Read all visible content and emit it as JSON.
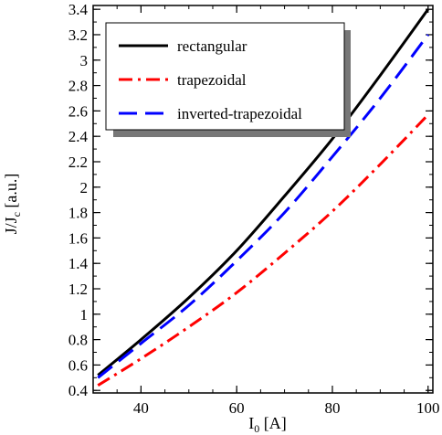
{
  "chart_data": {
    "type": "line",
    "xlabel": "I",
    "xlabel_sub": "0",
    "xlabel_unit": " [A]",
    "ylabel": "J/J",
    "ylabel_sub": "c",
    "ylabel_unit": " [a.u.]",
    "xlim": [
      30,
      101
    ],
    "ylim": [
      0.38,
      3.43
    ],
    "xticks": [
      40,
      60,
      80,
      100
    ],
    "yticks": [
      0.4,
      0.6,
      0.8,
      1,
      1.2,
      1.4,
      1.6,
      1.8,
      2,
      2.2,
      2.4,
      2.6,
      2.8,
      3,
      3.2,
      3.4
    ],
    "x_minor_step": 5,
    "y_minor_step": 0.1,
    "grid": false,
    "legend_position": "top-left",
    "series": [
      {
        "name": "rectangular",
        "color": "#000000",
        "dash": "solid",
        "x": [
          31,
          40,
          50,
          60,
          70,
          80,
          90,
          100
        ],
        "y": [
          0.52,
          0.8,
          1.13,
          1.5,
          1.93,
          2.38,
          2.88,
          3.4
        ]
      },
      {
        "name": "trapezoidal",
        "color": "#ff0000",
        "dash": "dashdot",
        "x": [
          31,
          40,
          50,
          60,
          70,
          80,
          90,
          100
        ],
        "y": [
          0.44,
          0.65,
          0.9,
          1.17,
          1.48,
          1.81,
          2.18,
          2.57
        ]
      },
      {
        "name": "inverted-trapezoidal",
        "color": "#0000ff",
        "dash": "dash",
        "x": [
          31,
          40,
          50,
          60,
          70,
          80,
          90,
          100
        ],
        "y": [
          0.5,
          0.77,
          1.07,
          1.42,
          1.8,
          2.24,
          2.7,
          3.2
        ]
      }
    ]
  }
}
